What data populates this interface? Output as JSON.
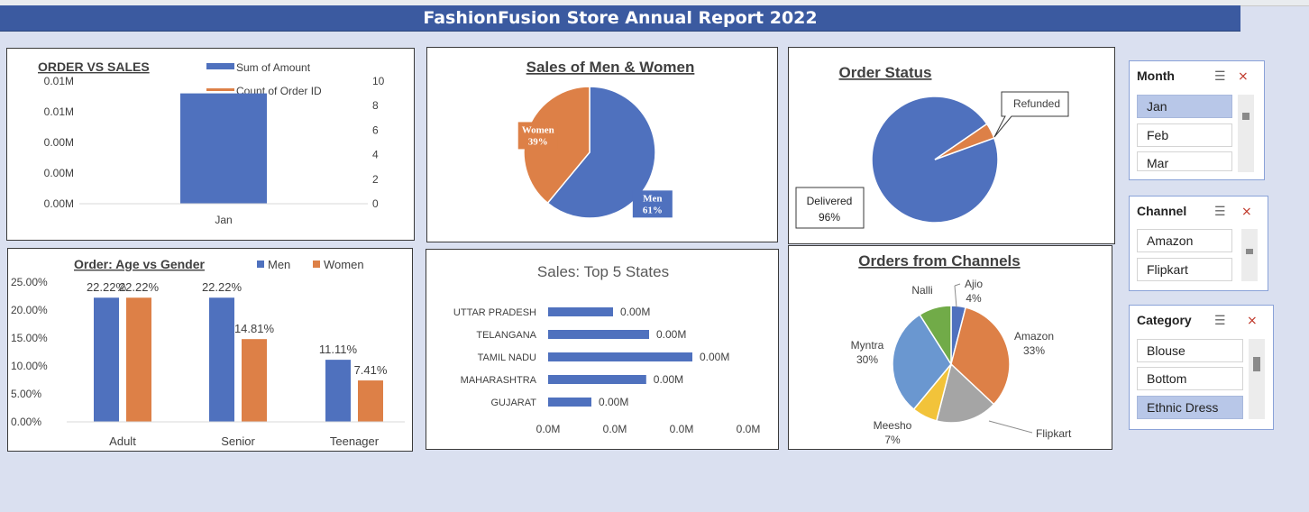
{
  "banner": {
    "title": "FashionFusion Store Annual Report 2022"
  },
  "chart_data": [
    {
      "id": "order_vs_sales",
      "type": "bar",
      "title": "ORDER VS SALES",
      "categories": [
        "Jan"
      ],
      "series": [
        {
          "name": "Sum of Amount",
          "values": [
            0.0071
          ],
          "axis": "left",
          "color": "#4f71be"
        },
        {
          "name": "Count of Order ID",
          "values": [
            9
          ],
          "axis": "right",
          "color": "#dd8047"
        }
      ],
      "y_left_ticks": [
        "0.00M",
        "0.00M",
        "0.00M",
        "0.01M",
        "0.01M"
      ],
      "y_right_ticks": [
        "0",
        "2",
        "4",
        "6",
        "8",
        "10"
      ],
      "ylim_right": [
        0,
        10
      ],
      "legend": "top",
      "grid": false
    },
    {
      "id": "sales_gender",
      "type": "pie",
      "title": "Sales of Men & Women",
      "labels": [
        "Men",
        "Women"
      ],
      "values": [
        61,
        39
      ],
      "value_labels": [
        "61%",
        "39%"
      ],
      "colors": [
        "#4f71be",
        "#dd8047"
      ]
    },
    {
      "id": "order_status",
      "type": "pie",
      "title": "Order Status",
      "labels": [
        "Delivered",
        "Refunded"
      ],
      "values": [
        96,
        4
      ],
      "value_labels": [
        "96%",
        ""
      ],
      "colors": [
        "#4f71be",
        "#dd8047"
      ]
    },
    {
      "id": "age_gender",
      "type": "bar",
      "title": "Order: Age vs Gender",
      "categories": [
        "Adult",
        "Senior",
        "Teenager"
      ],
      "series": [
        {
          "name": "Men",
          "values": [
            22.22,
            22.22,
            11.11
          ],
          "labels": [
            "22.22%",
            "22.22%",
            "11.11%"
          ],
          "color": "#4f71be"
        },
        {
          "name": "Women",
          "values": [
            22.22,
            14.81,
            7.41
          ],
          "labels": [
            "22.22%",
            "14.81%",
            "7.41%"
          ],
          "color": "#dd8047"
        }
      ],
      "y_ticks": [
        "0.00%",
        "5.00%",
        "10.00%",
        "15.00%",
        "20.00%",
        "25.00%"
      ],
      "ylim": [
        0,
        25
      ],
      "legend": "top-right",
      "grid": false
    },
    {
      "id": "top_states",
      "type": "bar",
      "orientation": "horizontal",
      "title": "Sales: Top 5 States",
      "categories": [
        "UTTAR PRADESH",
        "TELANGANA",
        "TAMIL NADU",
        "MAHARASHTRA",
        "GUJARAT"
      ],
      "values": [
        0.00045,
        0.0007,
        0.001,
        0.00068,
        0.0003
      ],
      "value_labels": [
        "0.00M",
        "0.00M",
        "0.00M",
        "0.00M",
        "0.00M"
      ],
      "x_ticks": [
        "0.0M",
        "0.0M",
        "0.0M",
        "0.0M"
      ],
      "xlim": [
        0,
        0.0015
      ],
      "color": "#4f71be"
    },
    {
      "id": "channels",
      "type": "pie",
      "title": "Orders from Channels",
      "labels": [
        "Ajio",
        "Amazon",
        "Flipkart",
        "Meesho",
        "Myntra",
        "Nalli"
      ],
      "values": [
        4,
        33,
        17,
        7,
        30,
        9
      ],
      "value_labels": [
        "4%",
        "33%",
        "",
        "7%",
        "30%",
        ""
      ],
      "colors": [
        "#4f71be",
        "#dd8047",
        "#a5a5a5",
        "#f2c33a",
        "#6a97d0",
        "#71ab48"
      ]
    }
  ],
  "slicers": [
    {
      "title": "Month",
      "items": [
        {
          "label": "Jan",
          "selected": true
        },
        {
          "label": "Feb",
          "selected": false
        },
        {
          "label": "Mar",
          "selected": false
        }
      ]
    },
    {
      "title": "Channel",
      "items": [
        {
          "label": "Amazon",
          "selected": false
        },
        {
          "label": "Flipkart",
          "selected": false
        }
      ]
    },
    {
      "title": "Category",
      "items": [
        {
          "label": "Blouse",
          "selected": false
        },
        {
          "label": "Bottom",
          "selected": false
        },
        {
          "label": "Ethnic Dress",
          "selected": true
        }
      ]
    }
  ],
  "icons": {
    "multiselect": "multi-select-icon",
    "clearfilter": "clear-filter-icon"
  }
}
